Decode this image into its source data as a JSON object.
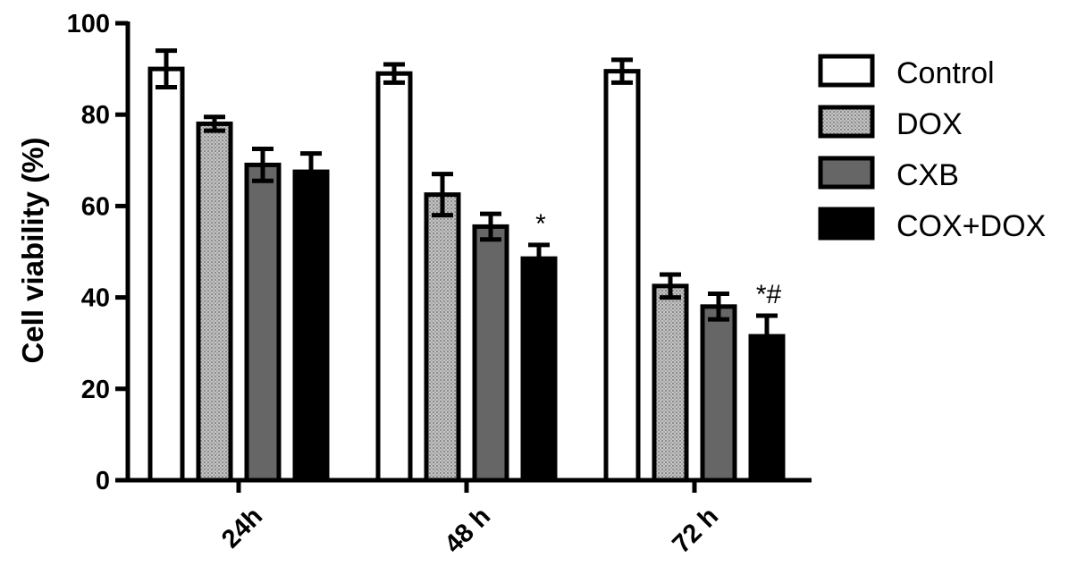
{
  "chart_data": {
    "type": "bar",
    "title": "",
    "xlabel": "",
    "ylabel": "Cell viability (%)",
    "ylim": [
      0,
      100
    ],
    "yticks": [
      "0",
      "20",
      "40",
      "60",
      "80",
      "100"
    ],
    "categories": [
      "24h",
      "48 h",
      "72 h"
    ],
    "legend_position": "right",
    "grid": false,
    "series": [
      {
        "name": "Control",
        "color": "#ffffff",
        "pattern": "none",
        "values": [
          90,
          89,
          89.5
        ],
        "errors": [
          4,
          2,
          2.5
        ]
      },
      {
        "name": "DOX",
        "color": "#b8b8b8",
        "pattern": "dots",
        "values": [
          78,
          62.5,
          42.5
        ],
        "errors": [
          1.5,
          4.5,
          2.5
        ]
      },
      {
        "name": "CXB",
        "color": "#666666",
        "pattern": "none",
        "values": [
          69,
          55.5,
          38
        ],
        "errors": [
          3.5,
          2.8,
          2.8
        ]
      },
      {
        "name": "COX+DOX",
        "color": "#000000",
        "pattern": "none",
        "values": [
          67.5,
          48.5,
          31.5
        ],
        "errors": [
          4,
          3,
          4.5
        ]
      }
    ],
    "annotations": [
      {
        "category": "48 h",
        "series": "COX+DOX",
        "text": "*"
      },
      {
        "category": "72 h",
        "series": "COX+DOX",
        "text": "*#"
      }
    ]
  }
}
